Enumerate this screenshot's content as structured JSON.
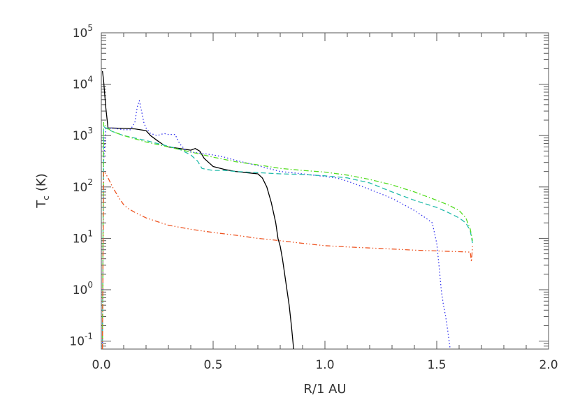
{
  "chart_data": {
    "type": "line",
    "title": "",
    "xlabel": "R/1 AU",
    "ylabel": {
      "main": "T",
      "sub": "c",
      "unit": "(K)"
    },
    "xlim": [
      0.0,
      2.0
    ],
    "ylim": [
      0.07,
      100000
    ],
    "yscale": "log",
    "grid": false,
    "legend": "none",
    "x_ticks": [
      {
        "value": 0.0,
        "label": "0.0"
      },
      {
        "value": 0.5,
        "label": "0.5"
      },
      {
        "value": 1.0,
        "label": "1.0"
      },
      {
        "value": 1.5,
        "label": "1.5"
      },
      {
        "value": 2.0,
        "label": "2.0"
      }
    ],
    "y_ticks": [
      {
        "value": 0.1,
        "base": "10",
        "exp": "-1"
      },
      {
        "value": 1,
        "base": "10",
        "exp": "0"
      },
      {
        "value": 10,
        "base": "10",
        "exp": "1"
      },
      {
        "value": 100,
        "base": "10",
        "exp": "2"
      },
      {
        "value": 1000,
        "base": "10",
        "exp": "3"
      },
      {
        "value": 10000,
        "base": "10",
        "exp": "4"
      },
      {
        "value": 100000,
        "base": "10",
        "exp": "5"
      }
    ],
    "series": [
      {
        "color": "#000000",
        "dash": "solid",
        "x": [
          0.005,
          0.01,
          0.02,
          0.03,
          0.05,
          0.1,
          0.15,
          0.2,
          0.22,
          0.25,
          0.28,
          0.3,
          0.35,
          0.4,
          0.42,
          0.44,
          0.46,
          0.48,
          0.5,
          0.55,
          0.6,
          0.65,
          0.7,
          0.72,
          0.74,
          0.76,
          0.78,
          0.79,
          0.8,
          0.81,
          0.82,
          0.83,
          0.84,
          0.85,
          0.86
        ],
        "y": [
          18000,
          12000,
          3500,
          1400,
          1400,
          1380,
          1350,
          1250,
          1000,
          800,
          650,
          600,
          560,
          520,
          560,
          500,
          360,
          300,
          250,
          220,
          200,
          190,
          180,
          150,
          100,
          50,
          20,
          10,
          7,
          4,
          2,
          1,
          0.5,
          0.2,
          0.07
        ]
      },
      {
        "color": "#3333ee",
        "dash": "dot",
        "x": [
          0.005,
          0.01,
          0.02,
          0.05,
          0.1,
          0.13,
          0.15,
          0.16,
          0.17,
          0.18,
          0.19,
          0.2,
          0.22,
          0.25,
          0.28,
          0.3,
          0.33,
          0.35,
          0.38,
          0.4,
          0.45,
          0.5,
          0.55,
          0.6,
          0.7,
          0.8,
          0.9,
          1.0,
          1.05,
          1.1,
          1.2,
          1.3,
          1.4,
          1.45,
          1.48,
          1.5,
          1.51,
          1.52,
          1.53,
          1.54,
          1.55,
          1.56
        ],
        "y": [
          0.07,
          300,
          1400,
          1400,
          1300,
          1300,
          1800,
          3500,
          4800,
          3000,
          1800,
          1400,
          1100,
          1000,
          1100,
          1050,
          1050,
          700,
          500,
          480,
          450,
          420,
          380,
          330,
          260,
          200,
          180,
          160,
          150,
          130,
          90,
          60,
          35,
          25,
          20,
          8,
          3,
          1,
          0.5,
          0.3,
          0.15,
          0.07
        ]
      },
      {
        "color": "#22bbaa",
        "dash": "dash",
        "x": [
          0.005,
          0.01,
          0.02,
          0.05,
          0.1,
          0.2,
          0.3,
          0.35,
          0.4,
          0.43,
          0.45,
          0.47,
          0.5,
          0.55,
          0.6,
          0.7,
          0.8,
          0.9,
          1.0,
          1.1,
          1.2,
          1.3,
          1.4,
          1.5,
          1.55,
          1.6,
          1.63,
          1.65,
          1.66
        ],
        "y": [
          0.07,
          1500,
          1400,
          1200,
          1000,
          800,
          620,
          540,
          420,
          320,
          230,
          220,
          210,
          210,
          200,
          190,
          180,
          175,
          165,
          150,
          120,
          80,
          55,
          40,
          32,
          25,
          20,
          14,
          8
        ]
      },
      {
        "color": "#55dd22",
        "dash": "dashdot",
        "x": [
          0.005,
          0.01,
          0.02,
          0.05,
          0.1,
          0.2,
          0.3,
          0.4,
          0.5,
          0.6,
          0.7,
          0.8,
          0.9,
          1.0,
          1.1,
          1.2,
          1.3,
          1.4,
          1.5,
          1.55,
          1.6,
          1.63,
          1.65,
          1.66
        ],
        "y": [
          0.07,
          1800,
          1450,
          1200,
          1000,
          750,
          600,
          480,
          380,
          310,
          270,
          230,
          210,
          195,
          170,
          140,
          110,
          80,
          55,
          45,
          35,
          25,
          15,
          9
        ]
      },
      {
        "color": "#ee5522",
        "dash": "dashdotdot",
        "x": [
          0.005,
          0.01,
          0.02,
          0.03,
          0.05,
          0.08,
          0.1,
          0.12,
          0.15,
          0.2,
          0.3,
          0.4,
          0.5,
          0.6,
          0.7,
          0.8,
          0.9,
          1.0,
          1.1,
          1.2,
          1.3,
          1.4,
          1.5,
          1.6,
          1.65,
          1.655,
          1.66
        ],
        "y": [
          0.07,
          200,
          180,
          150,
          100,
          60,
          45,
          38,
          32,
          25,
          18,
          15,
          13,
          11.5,
          10,
          9,
          8,
          7.2,
          6.8,
          6.5,
          6.2,
          5.9,
          5.7,
          5.5,
          5.4,
          3.5,
          7
        ]
      }
    ]
  }
}
